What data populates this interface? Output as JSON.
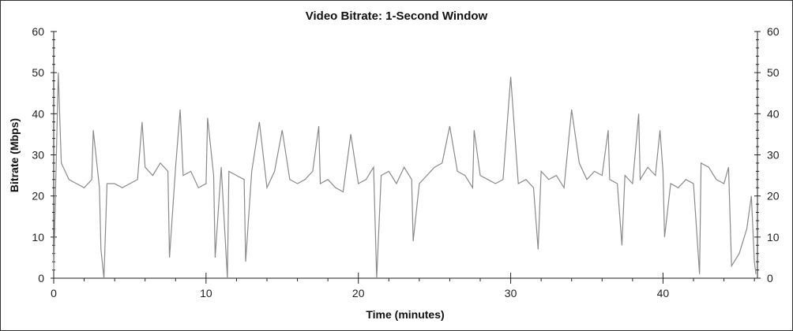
{
  "chart_data": {
    "type": "line",
    "title": "Video Bitrate: 1-Second Window",
    "xlabel": "Time (minutes)",
    "ylabel": "Bitrate (Mbps)",
    "xlim": [
      0,
      46.2
    ],
    "ylim": [
      0,
      60
    ],
    "xticks": [
      0,
      10,
      20,
      30,
      40
    ],
    "yticks": [
      0,
      10,
      20,
      30,
      40,
      50,
      60
    ],
    "grid": false,
    "line_color": "#8a8a8a",
    "series": [
      {
        "x": [
          0,
          0.3,
          0.5,
          1,
          1.5,
          2,
          2.5,
          2.6,
          3,
          3.1,
          3.3,
          3.5,
          4,
          4.5,
          5,
          5.5,
          5.8,
          6,
          6.5,
          7,
          7.5,
          7.6,
          8,
          8.3,
          8.5,
          9,
          9.5,
          10,
          10.1,
          10.5,
          10.6,
          11,
          11.4,
          11.5,
          12,
          12.5,
          12.6,
          13,
          13.5,
          14,
          14.5,
          15,
          15.5,
          16,
          16.5,
          17,
          17.4,
          17.5,
          18,
          18.5,
          19,
          19.5,
          20,
          20.5,
          21,
          21.2,
          21.5,
          22,
          22.5,
          23,
          23.5,
          23.6,
          24,
          24.5,
          25,
          25.5,
          26,
          26.5,
          27,
          27.5,
          27.6,
          28,
          28.5,
          29,
          29.5,
          30,
          30.5,
          31,
          31.5,
          31.8,
          32,
          32.5,
          33,
          33.5,
          34,
          34.5,
          35,
          35.5,
          36,
          36.4,
          36.5,
          37,
          37.3,
          37.5,
          38,
          38.4,
          38.5,
          39,
          39.5,
          39.8,
          40,
          40.1,
          40.5,
          41,
          41.5,
          42,
          42.4,
          42.5,
          43,
          43.5,
          44,
          44.3,
          44.5,
          45,
          45.5,
          45.8,
          46,
          46.1
        ],
        "y": [
          2,
          50,
          28,
          24,
          23,
          22,
          24,
          36,
          22,
          7,
          0,
          23,
          23,
          22,
          23,
          24,
          38,
          27,
          25,
          28,
          26,
          5,
          27,
          41,
          25,
          26,
          22,
          23,
          39,
          25,
          5,
          27,
          0,
          26,
          25,
          24,
          4,
          26,
          38,
          22,
          26,
          36,
          24,
          23,
          24,
          26,
          37,
          23,
          24,
          22,
          21,
          35,
          23,
          24,
          27,
          0,
          25,
          26,
          23,
          27,
          24,
          9,
          23,
          25,
          27,
          28,
          37,
          26,
          25,
          22,
          36,
          25,
          24,
          23,
          24,
          49,
          23,
          24,
          22,
          7,
          26,
          24,
          25,
          22,
          41,
          28,
          24,
          26,
          25,
          36,
          24,
          23,
          8,
          25,
          23,
          40,
          24,
          27,
          25,
          36,
          26,
          10,
          23,
          22,
          24,
          23,
          1,
          28,
          27,
          24,
          23,
          27,
          3,
          6,
          12,
          20,
          4,
          1
        ]
      }
    ]
  }
}
